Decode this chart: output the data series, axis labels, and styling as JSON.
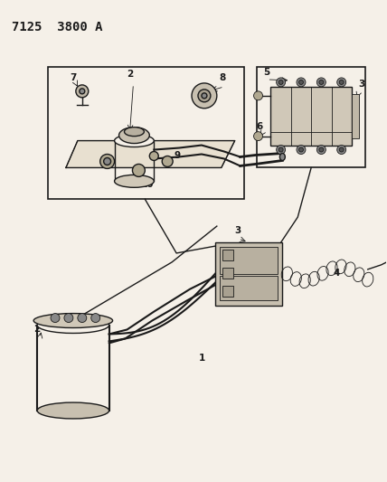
{
  "bg_color": "#f5f0e8",
  "line_color": "#1a1a1a",
  "title": "7125 3800 A",
  "title_fontsize": 10,
  "label_fontsize": 7.5,
  "lw_main": 1.0,
  "lw_thin": 0.6
}
